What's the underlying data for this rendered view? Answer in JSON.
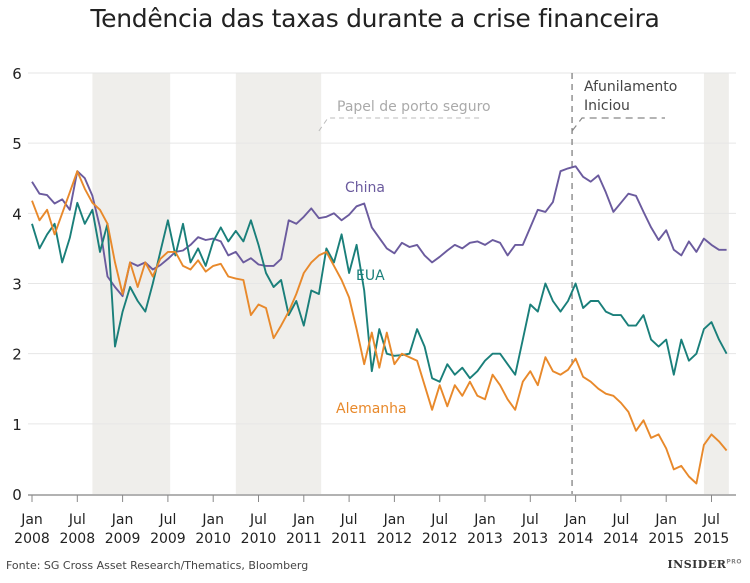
{
  "chart_data": {
    "type": "line",
    "title": "Tendência das taxas durante a crise financeira",
    "source": "Fonte: SG Cross Asset Research/Thematics, Bloomberg",
    "logo": "INSIDER PRO",
    "ylim": [
      0,
      6
    ],
    "yticks": [
      "0",
      "1",
      "2",
      "3",
      "4",
      "5",
      "6"
    ],
    "grid": true,
    "xticks": [
      {
        "date": "2008-01",
        "m": "Jan",
        "y": "2008"
      },
      {
        "date": "2008-07",
        "m": "Jul",
        "y": "2008"
      },
      {
        "date": "2009-01",
        "m": "Jan",
        "y": "2009"
      },
      {
        "date": "2009-07",
        "m": "Jul",
        "y": "2009"
      },
      {
        "date": "2010-01",
        "m": "Jan",
        "y": "2010"
      },
      {
        "date": "2010-07",
        "m": "Jul",
        "y": "2010"
      },
      {
        "date": "2011-01",
        "m": "Jan",
        "y": "2011"
      },
      {
        "date": "2011-07",
        "m": "Jul",
        "y": "2011"
      },
      {
        "date": "2012-01",
        "m": "Jan",
        "y": "2012"
      },
      {
        "date": "2012-07",
        "m": "Jul",
        "y": "2012"
      },
      {
        "date": "2013-01",
        "m": "Jan",
        "y": "2013"
      },
      {
        "date": "2013-07",
        "m": "Jul",
        "y": "2013"
      },
      {
        "date": "2014-01",
        "m": "Jan",
        "y": "2014"
      },
      {
        "date": "2014-07",
        "m": "Jul",
        "y": "2014"
      },
      {
        "date": "2015-01",
        "m": "Jan",
        "y": "2015"
      },
      {
        "date": "2015-07",
        "m": "Jul",
        "y": "2015"
      }
    ],
    "shaded_periods": [
      [
        "2008-09",
        "2009-07"
      ],
      [
        "2010-04",
        "2011-03"
      ],
      [
        "2015-06",
        "2015-09"
      ]
    ],
    "annotations": [
      {
        "text": "Papel de porto seguro",
        "date": "2011-03",
        "color": "#aaaaaa"
      },
      {
        "text": "Afunilamento",
        "text2": "Iniciou",
        "date": "2013-12",
        "color": "#444444",
        "vertical_line": true
      }
    ],
    "x": [
      "2008-01",
      "2008-02",
      "2008-03",
      "2008-04",
      "2008-05",
      "2008-06",
      "2008-07",
      "2008-08",
      "2008-09",
      "2008-10",
      "2008-11",
      "2008-12",
      "2009-01",
      "2009-02",
      "2009-03",
      "2009-04",
      "2009-05",
      "2009-06",
      "2009-07",
      "2009-08",
      "2009-09",
      "2009-10",
      "2009-11",
      "2009-12",
      "2010-01",
      "2010-02",
      "2010-03",
      "2010-04",
      "2010-05",
      "2010-06",
      "2010-07",
      "2010-08",
      "2010-09",
      "2010-10",
      "2010-11",
      "2010-12",
      "2011-01",
      "2011-02",
      "2011-03",
      "2011-04",
      "2011-05",
      "2011-06",
      "2011-07",
      "2011-08",
      "2011-09",
      "2011-10",
      "2011-11",
      "2011-12",
      "2012-01",
      "2012-02",
      "2012-03",
      "2012-04",
      "2012-05",
      "2012-06",
      "2012-07",
      "2012-08",
      "2012-09",
      "2012-10",
      "2012-11",
      "2012-12",
      "2013-01",
      "2013-02",
      "2013-03",
      "2013-04",
      "2013-05",
      "2013-06",
      "2013-07",
      "2013-08",
      "2013-09",
      "2013-10",
      "2013-11",
      "2013-12",
      "2014-01",
      "2014-02",
      "2014-03",
      "2014-04",
      "2014-05",
      "2014-06",
      "2014-07",
      "2014-08",
      "2014-09",
      "2014-10",
      "2014-11",
      "2014-12",
      "2015-01",
      "2015-02",
      "2015-03",
      "2015-04",
      "2015-05",
      "2015-06",
      "2015-07",
      "2015-08",
      "2015-09"
    ],
    "series": [
      {
        "name": "China",
        "color": "#6b5b9e",
        "values": [
          4.45,
          4.28,
          4.26,
          4.14,
          4.2,
          4.05,
          4.6,
          4.5,
          4.25,
          3.8,
          3.1,
          2.95,
          2.82,
          3.3,
          3.25,
          3.3,
          3.2,
          3.26,
          3.35,
          3.45,
          3.47,
          3.55,
          3.66,
          3.62,
          3.64,
          3.6,
          3.4,
          3.45,
          3.3,
          3.36,
          3.27,
          3.25,
          3.25,
          3.35,
          3.9,
          3.85,
          3.95,
          4.07,
          3.93,
          3.95,
          4.0,
          3.9,
          3.98,
          4.1,
          4.14,
          3.8,
          3.65,
          3.5,
          3.43,
          3.58,
          3.52,
          3.55,
          3.4,
          3.3,
          3.38,
          3.47,
          3.55,
          3.5,
          3.58,
          3.6,
          3.55,
          3.62,
          3.58,
          3.4,
          3.55,
          3.55,
          3.8,
          4.05,
          4.02,
          4.16,
          4.6,
          4.64,
          4.67,
          4.52,
          4.45,
          4.54,
          4.3,
          4.02,
          4.15,
          4.28,
          4.25,
          4.02,
          3.8,
          3.62,
          3.76,
          3.48,
          3.4,
          3.6,
          3.45,
          3.64,
          3.55,
          3.48,
          3.48
        ]
      },
      {
        "name": "EUA",
        "color": "#1a7f7a",
        "values": [
          3.85,
          3.5,
          3.7,
          3.85,
          3.3,
          3.65,
          4.15,
          3.85,
          4.05,
          3.45,
          3.85,
          2.1,
          2.6,
          2.95,
          2.75,
          2.6,
          3.0,
          3.45,
          3.9,
          3.4,
          3.85,
          3.3,
          3.5,
          3.25,
          3.6,
          3.8,
          3.6,
          3.75,
          3.6,
          3.9,
          3.55,
          3.15,
          2.95,
          3.05,
          2.55,
          2.75,
          2.4,
          2.9,
          2.85,
          3.5,
          3.3,
          3.7,
          3.15,
          3.55,
          2.9,
          1.75,
          2.35,
          2.0,
          1.97,
          1.98,
          2.0,
          2.35,
          2.1,
          1.65,
          1.6,
          1.85,
          1.7,
          1.8,
          1.65,
          1.75,
          1.9,
          2.0,
          2.0,
          1.85,
          1.7,
          2.2,
          2.7,
          2.6,
          3.0,
          2.75,
          2.6,
          2.75,
          3.0,
          2.65,
          2.75,
          2.75,
          2.6,
          2.55,
          2.55,
          2.4,
          2.4,
          2.55,
          2.2,
          2.1,
          2.2,
          1.7,
          2.2,
          1.9,
          2.0,
          2.35,
          2.45,
          2.2,
          2.0
        ]
      },
      {
        "name": "Alemanha",
        "color": "#e8892b",
        "values": [
          4.18,
          3.9,
          4.05,
          3.7,
          4.0,
          4.3,
          4.6,
          4.35,
          4.15,
          4.05,
          3.85,
          3.3,
          2.85,
          3.3,
          2.95,
          3.3,
          3.1,
          3.35,
          3.45,
          3.45,
          3.25,
          3.2,
          3.33,
          3.17,
          3.25,
          3.28,
          3.1,
          3.07,
          3.05,
          2.55,
          2.7,
          2.65,
          2.22,
          2.4,
          2.6,
          2.85,
          3.15,
          3.3,
          3.4,
          3.45,
          3.25,
          3.05,
          2.8,
          2.35,
          1.85,
          2.3,
          1.8,
          2.3,
          1.85,
          2.0,
          1.95,
          1.9,
          1.55,
          1.2,
          1.55,
          1.25,
          1.55,
          1.4,
          1.6,
          1.4,
          1.35,
          1.7,
          1.55,
          1.35,
          1.2,
          1.6,
          1.75,
          1.55,
          1.95,
          1.75,
          1.7,
          1.77,
          1.93,
          1.67,
          1.6,
          1.5,
          1.43,
          1.4,
          1.3,
          1.17,
          0.9,
          1.05,
          0.8,
          0.85,
          0.65,
          0.35,
          0.4,
          0.25,
          0.15,
          0.7,
          0.85,
          0.75,
          0.62
        ]
      }
    ]
  }
}
